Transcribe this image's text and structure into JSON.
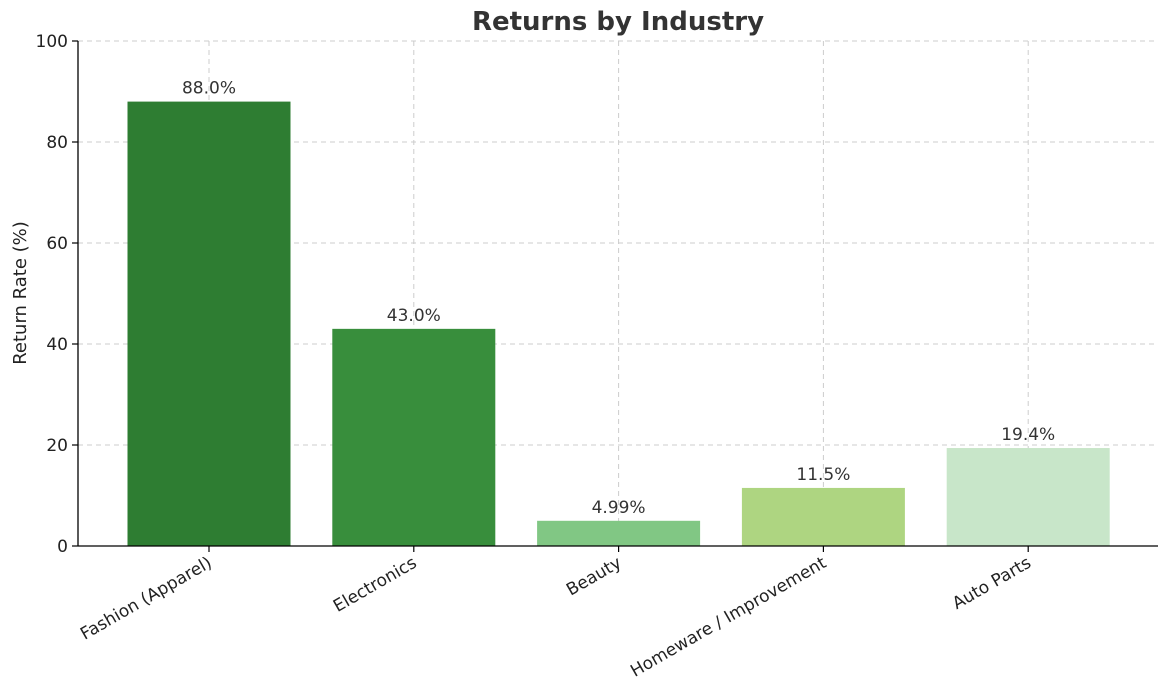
{
  "chart_data": {
    "type": "bar",
    "title": "Returns by Industry",
    "xlabel": "",
    "ylabel": "Return Rate (%)",
    "categories": [
      "Fashion (Apparel)",
      "Electronics",
      "Beauty",
      "Homeware / Improvement",
      "Auto Parts"
    ],
    "values": [
      88.0,
      43.0,
      4.99,
      11.5,
      19.4
    ],
    "data_labels": [
      "88.0%",
      "43.0%",
      "4.99%",
      "11.5%",
      "19.4%"
    ],
    "colors": [
      "#2e7d32",
      "#388e3c",
      "#81c784",
      "#aed581",
      "#c8e6c9"
    ],
    "ylim": [
      0,
      100
    ],
    "yticks": [
      0,
      20,
      40,
      60,
      80,
      100
    ],
    "grid": true,
    "legend": "none"
  }
}
